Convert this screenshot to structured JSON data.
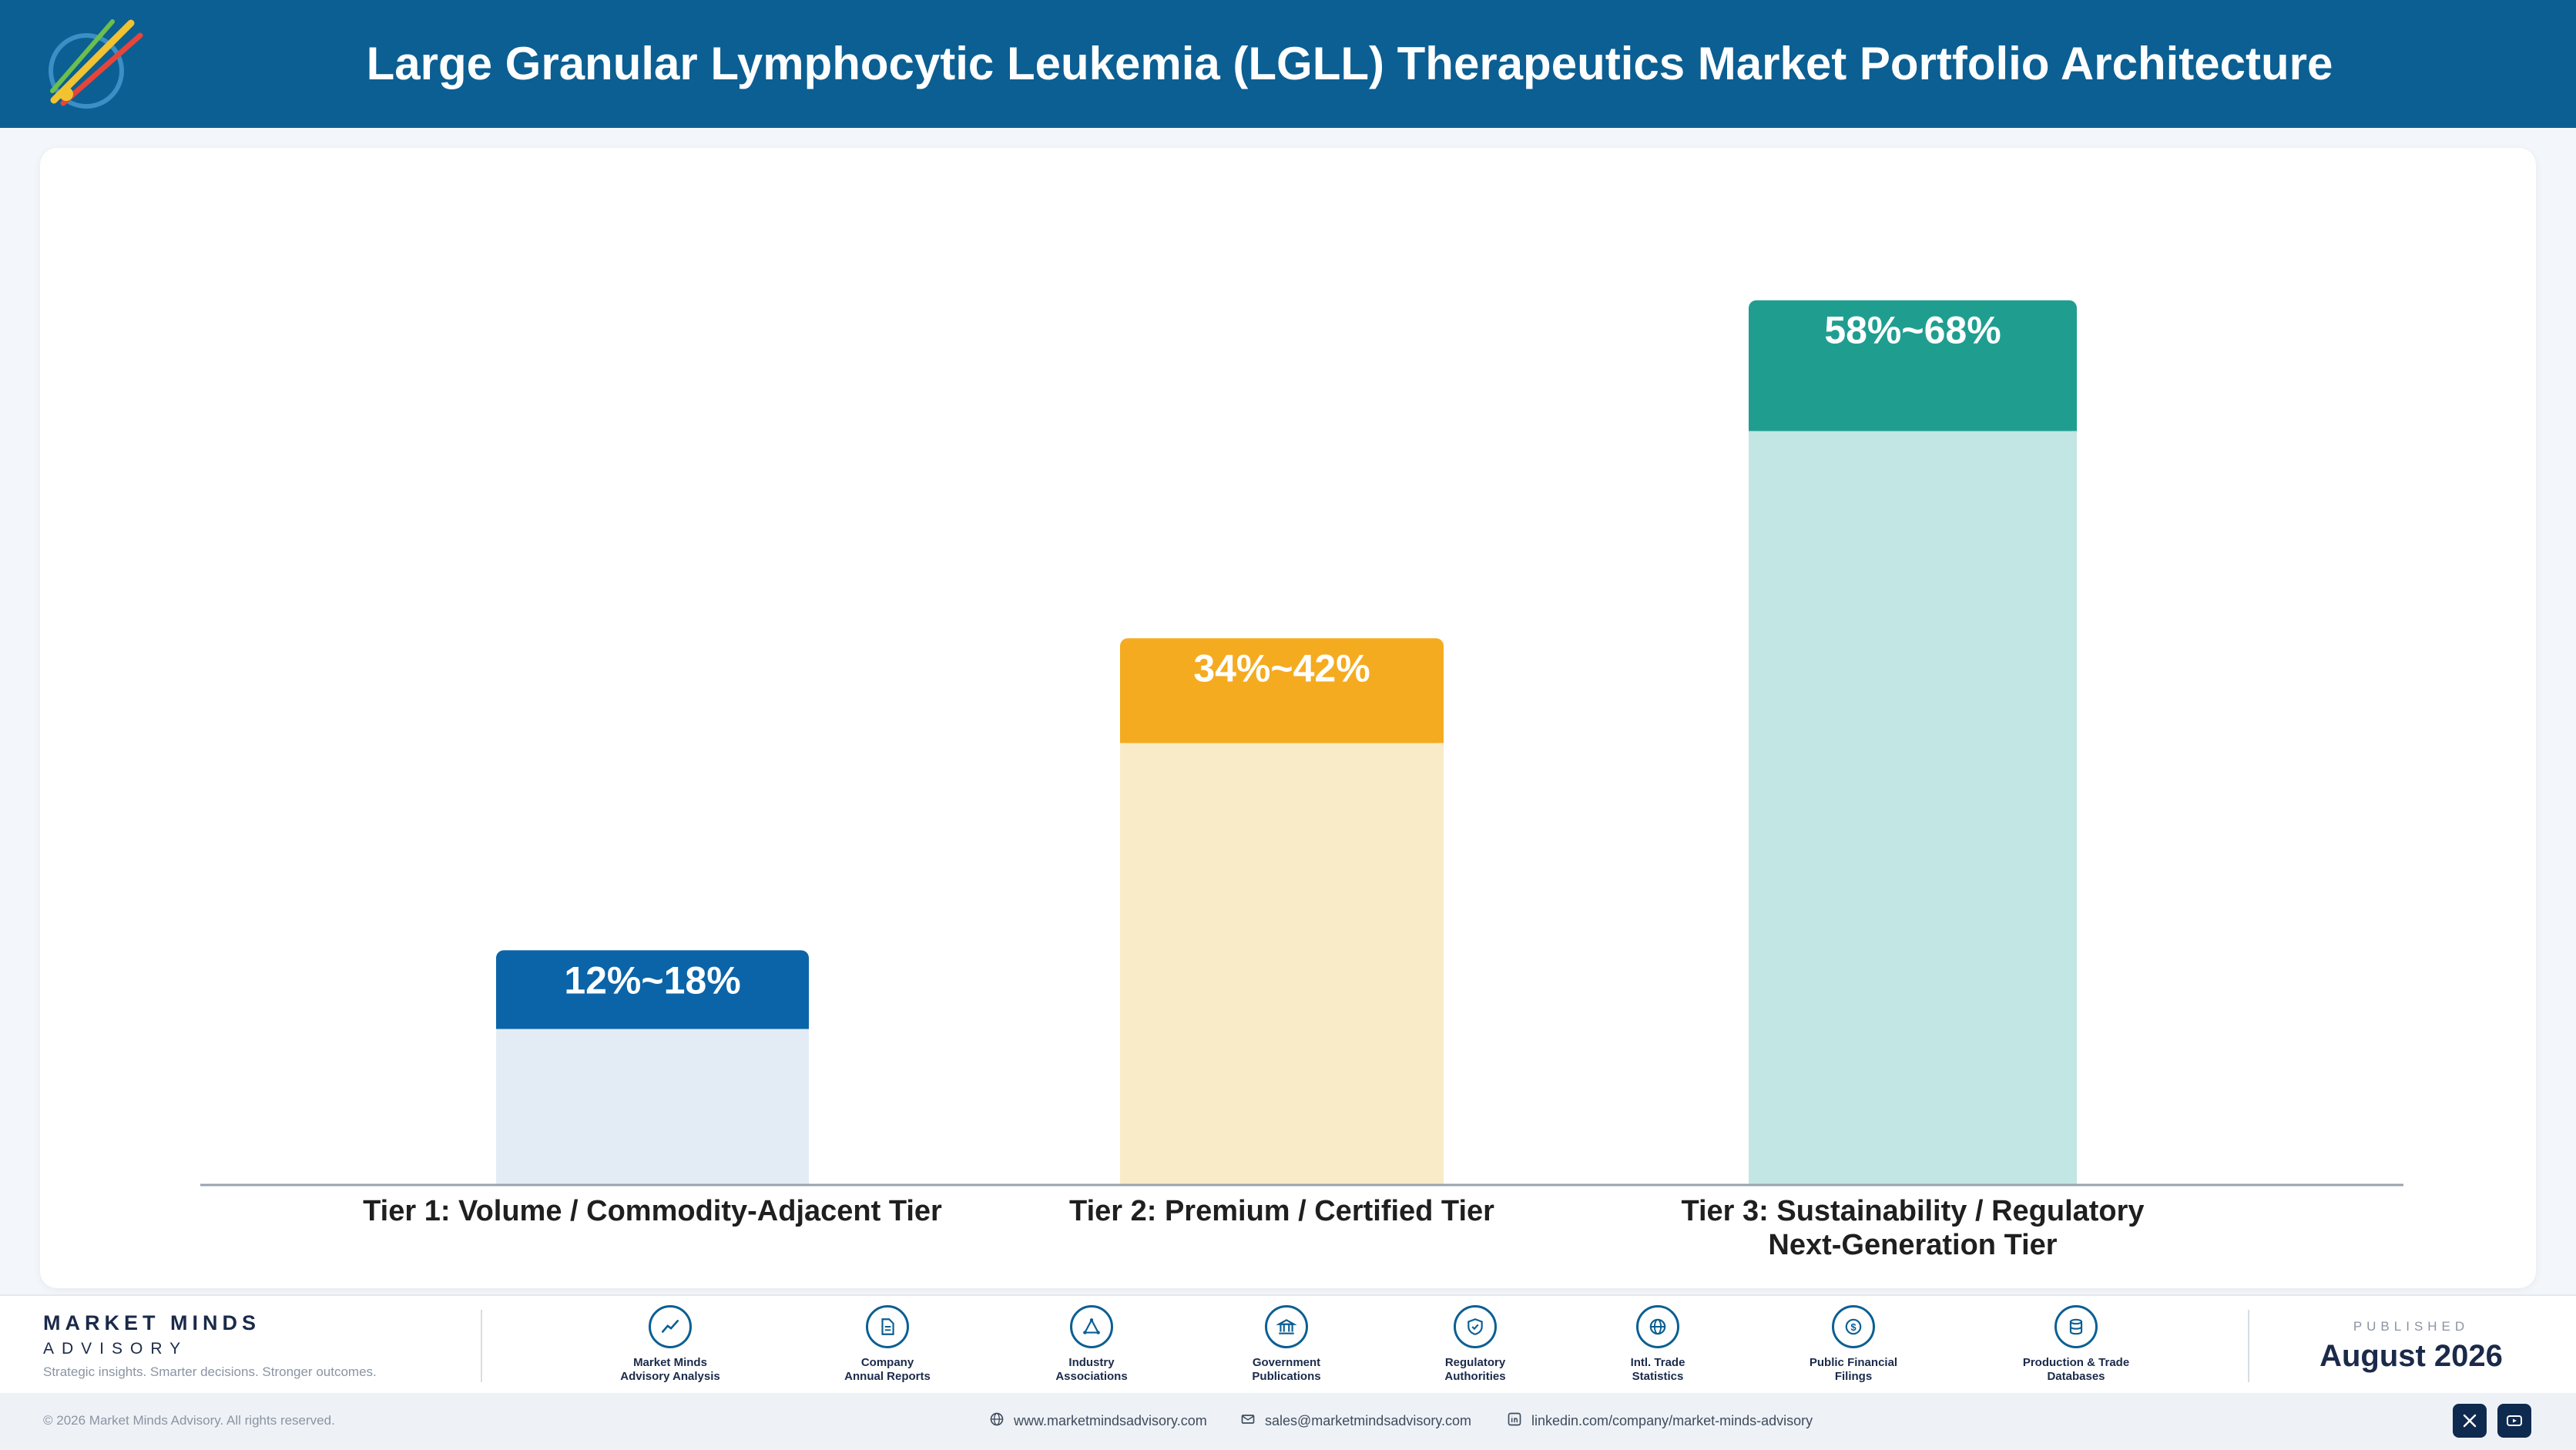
{
  "header": {
    "title": "Large Granular Lymphocytic Leukemia (LGLL) Therapeutics Market Portfolio Architecture"
  },
  "chart_data": {
    "type": "bar",
    "title": "",
    "xlabel": "",
    "ylabel": "",
    "categories": [
      "Tier 1: Volume / Commodity-Adjacent Tier",
      "Tier 2: Premium / Certified Tier",
      "Tier 3: Sustainability / Regulatory Next-Generation Tier"
    ],
    "category_lines": [
      [
        "Tier 1: Volume / Commodity-Adjacent Tier"
      ],
      [
        "Tier 2: Premium / Certified Tier"
      ],
      [
        "Tier 3: Sustainability / Regulatory",
        "Next-Generation Tier"
      ]
    ],
    "ranges": [
      [
        12,
        18
      ],
      [
        34,
        42
      ],
      [
        58,
        68
      ]
    ],
    "value_labels": [
      "12%~18%",
      "34%~42%",
      "58%~68%"
    ],
    "colors": [
      "#0b64a8",
      "#f5ab20",
      "#1f9e90"
    ],
    "light_colors": [
      "#e3ecf5",
      "#f9ebc8",
      "#c2e6e3"
    ],
    "grid": false,
    "legend": "none"
  },
  "footer": {
    "brand_name": "MARKET MINDS",
    "brand_sub": "ADVISORY",
    "tagline": "Strategic insights. Smarter decisions. Stronger outcomes.",
    "sources": [
      {
        "label": "Market Minds\nAdvisory Analysis",
        "icon": "trend-line-icon"
      },
      {
        "label": "Company\nAnnual Reports",
        "icon": "document-icon"
      },
      {
        "label": "Industry\nAssociations",
        "icon": "network-icon"
      },
      {
        "label": "Government\nPublications",
        "icon": "government-building-icon"
      },
      {
        "label": "Regulatory\nAuthorities",
        "icon": "shield-check-icon"
      },
      {
        "label": "Intl. Trade\nStatistics",
        "icon": "globe-icon"
      },
      {
        "label": "Public Financial\nFilings",
        "icon": "dollar-coin-icon"
      },
      {
        "label": "Production & Trade\nDatabases",
        "icon": "database-icon"
      }
    ],
    "published_label": "PUBLISHED",
    "published_date": "August 2026",
    "copyright": "© 2026 Market Minds Advisory. All rights reserved.",
    "website": "www.marketmindsadvisory.com",
    "email": "sales@marketmindsadvisory.com",
    "linkedin": "linkedin.com/company/market-minds-advisory"
  }
}
